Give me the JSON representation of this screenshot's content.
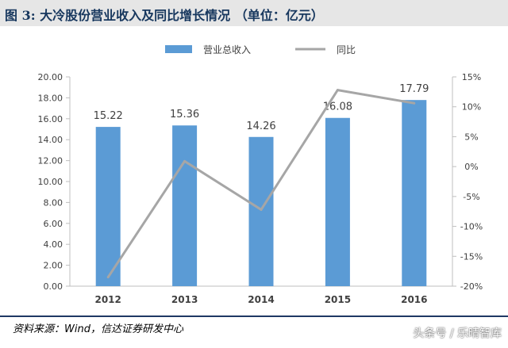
{
  "figure": {
    "title": "图 3:  大冷股份营业收入及同比增长情况 （单位：亿元）",
    "source": "资料来源：Wind，信达证券研发中心",
    "watermark": "头条号 / 乐晴智库"
  },
  "colors": {
    "bar": "#5b9bd5",
    "line": "#a6a6a6",
    "text": "#404040",
    "title": "#17375e"
  },
  "chart_data": {
    "type": "bar",
    "categories": [
      "2012",
      "2013",
      "2014",
      "2015",
      "2016"
    ],
    "series": [
      {
        "name": "营业总收入",
        "type": "bar",
        "axis": "left",
        "values": [
          15.22,
          15.36,
          14.26,
          16.08,
          17.79
        ],
        "value_labels": [
          "15.22",
          "15.36",
          "14.26",
          "16.08",
          "17.79"
        ]
      },
      {
        "name": "同比",
        "type": "line",
        "axis": "right",
        "values": [
          -18.5,
          0.9,
          -7.2,
          12.8,
          10.6
        ]
      }
    ],
    "ylim": [
      0,
      20
    ],
    "y_ticks": [
      "0.00",
      "2.00",
      "4.00",
      "6.00",
      "8.00",
      "10.00",
      "12.00",
      "14.00",
      "16.00",
      "18.00",
      "20.00"
    ],
    "y2lim": [
      -20,
      15
    ],
    "y2_ticks": [
      "-20%",
      "-15%",
      "-10%",
      "-5%",
      "0%",
      "5%",
      "10%",
      "15%"
    ],
    "legend_position": "top",
    "grid": false
  }
}
